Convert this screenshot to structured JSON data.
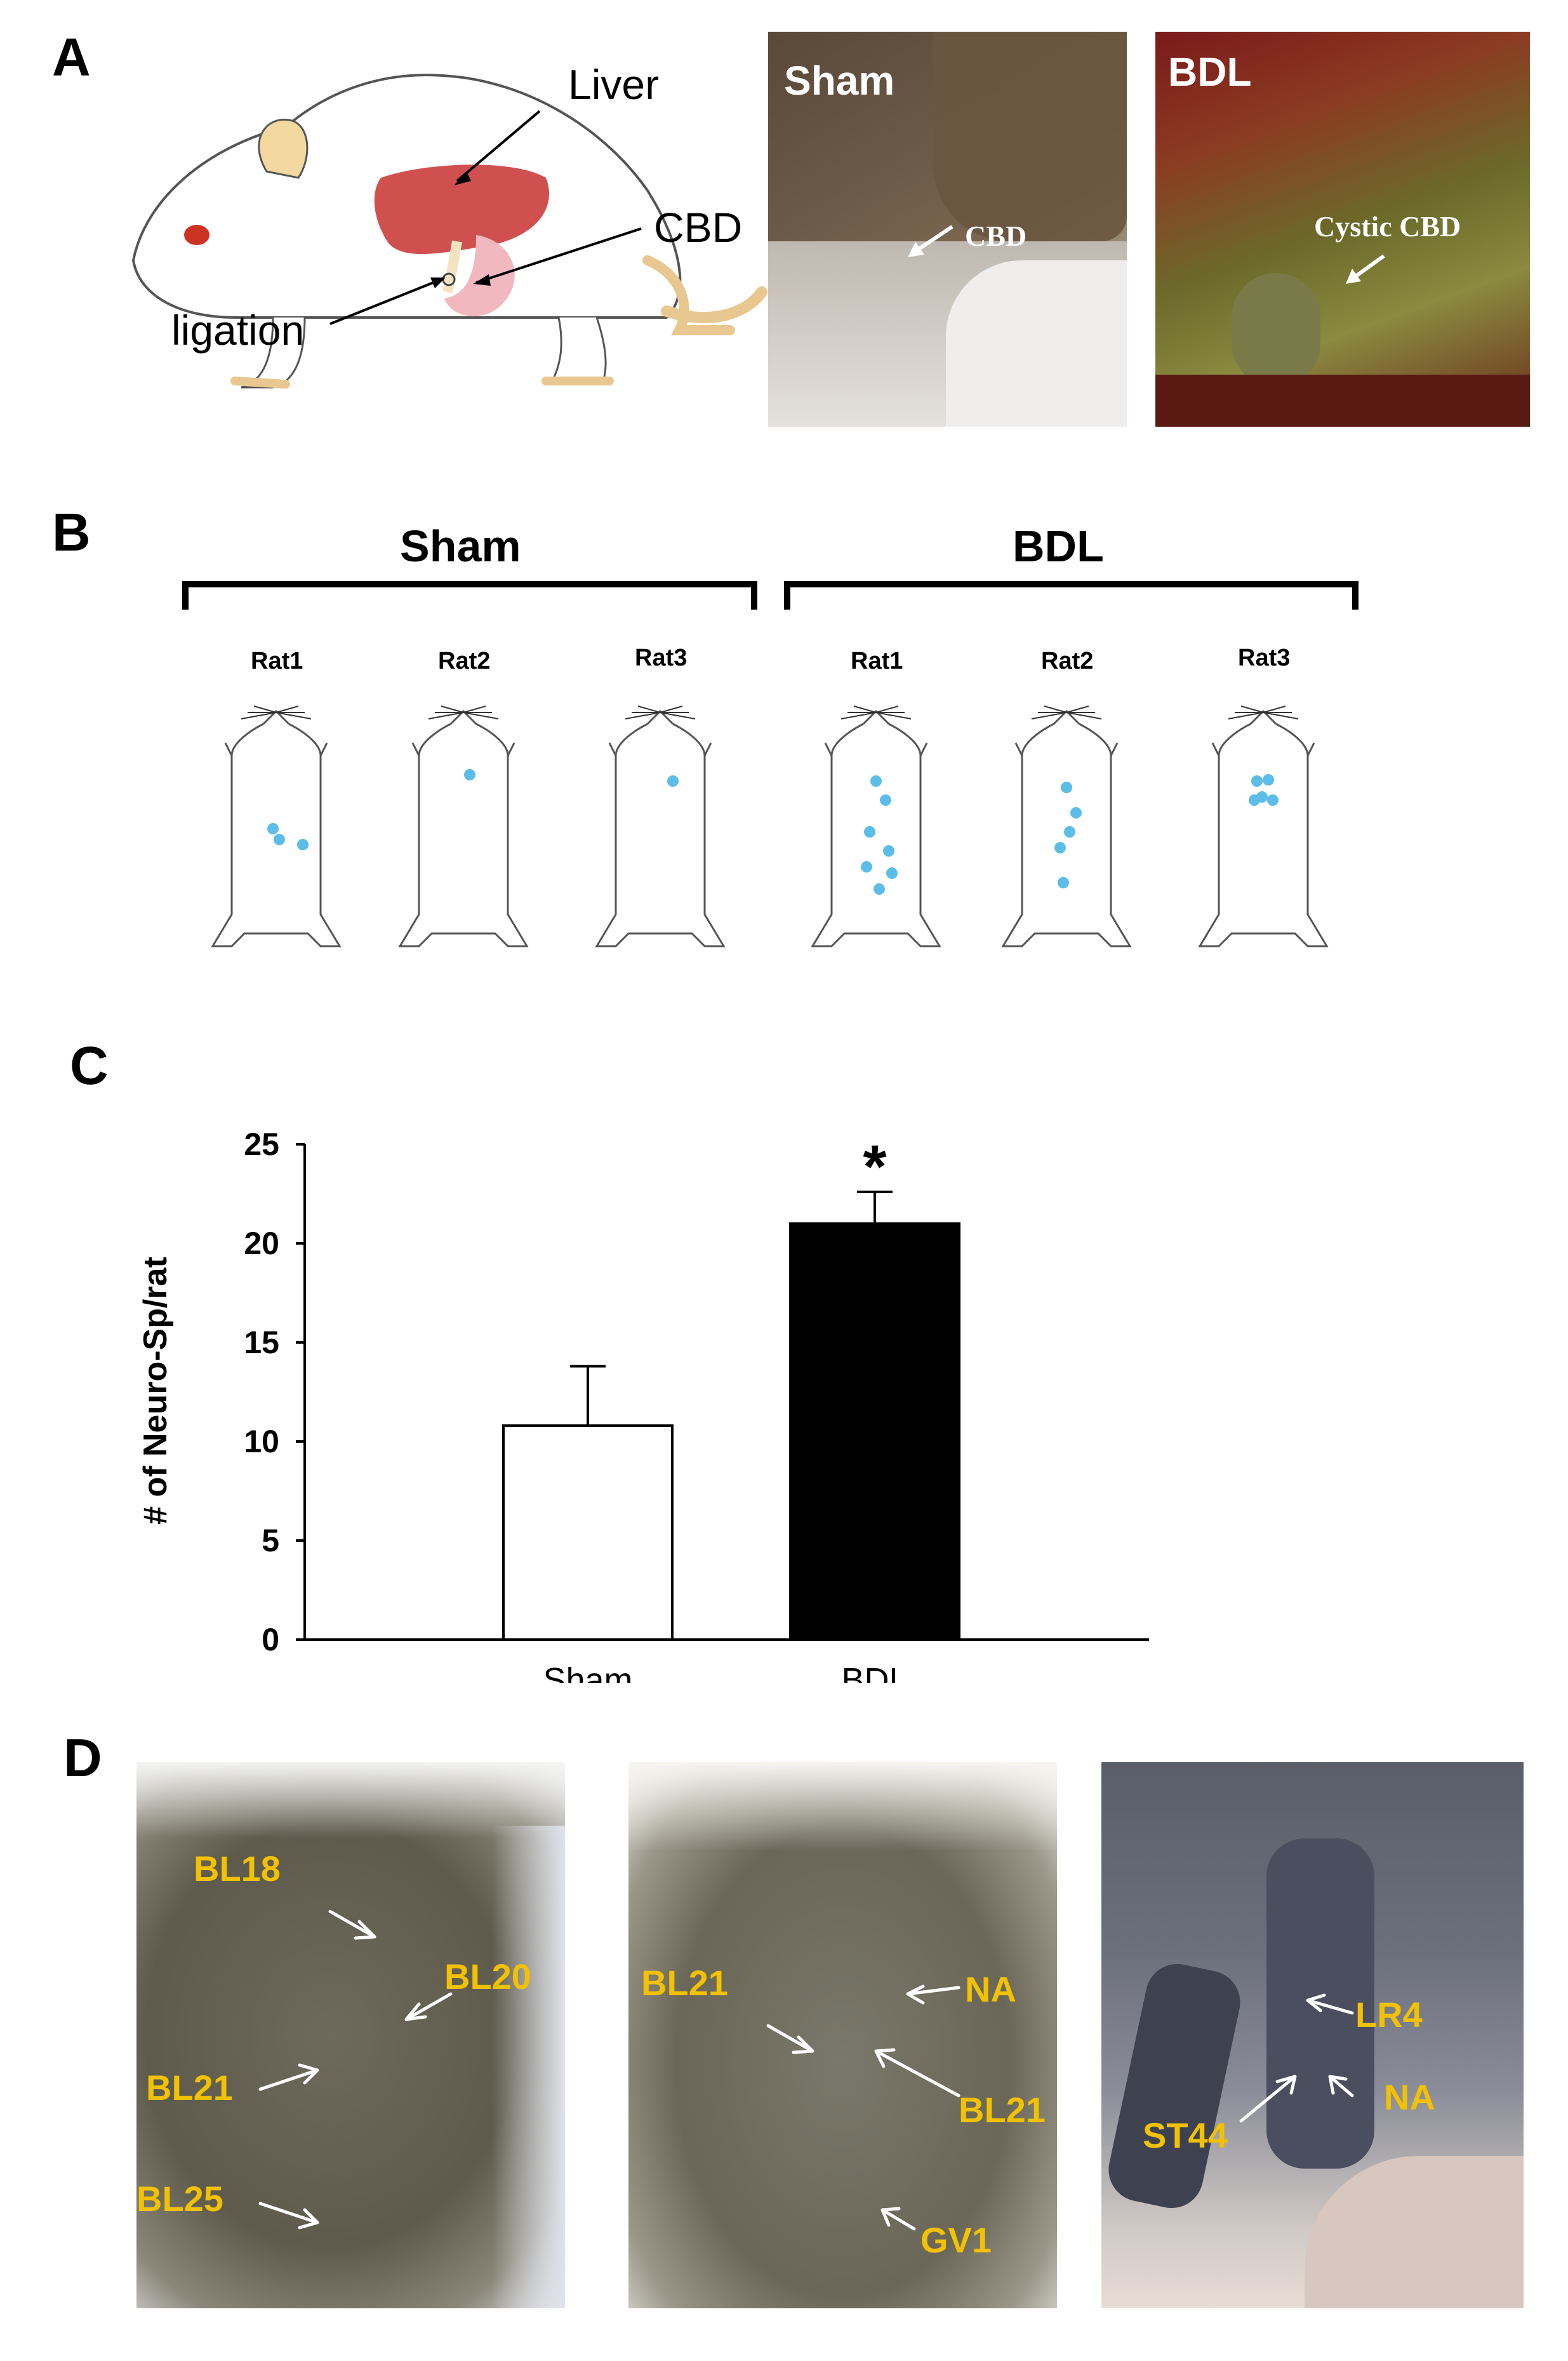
{
  "panels": {
    "a": "A",
    "b": "B",
    "c": "C",
    "d": "D"
  },
  "panel_a": {
    "diagram_labels": {
      "liver": "Liver",
      "cbd": "CBD",
      "ligation": "ligation"
    },
    "photo_sham": {
      "title": "Sham",
      "arrow_label": "CBD"
    },
    "photo_bdl": {
      "title": "BDL",
      "arrow_label": "Cystic CBD"
    }
  },
  "panel_b": {
    "groups": [
      {
        "name": "Sham",
        "rats": [
          "Rat1",
          "Rat2",
          "Rat3"
        ],
        "spot_counts": [
          3,
          1,
          1
        ]
      },
      {
        "name": "BDL",
        "rats": [
          "Rat1",
          "Rat2",
          "Rat3"
        ],
        "spot_counts": [
          7,
          5,
          5
        ]
      }
    ],
    "spot_color": "#5bbde8"
  },
  "panel_c": {
    "chart_data": {
      "type": "bar",
      "categories": [
        "Sham",
        "BDL"
      ],
      "values": [
        10.8,
        21.0
      ],
      "error": [
        3.0,
        1.6
      ],
      "bar_colors": [
        "#ffffff",
        "#000000"
      ],
      "ylabel": "# of Neuro-Sp/rat",
      "ylim": [
        0,
        25
      ],
      "yticks": [
        "0",
        "5",
        "10",
        "15",
        "20",
        "25"
      ],
      "annotation": "*",
      "grid": false
    }
  },
  "panel_d": {
    "photo1_labels": [
      "BL18",
      "BL20",
      "BL21",
      "BL25"
    ],
    "photo2_labels": [
      "BL21",
      "NA",
      "BL21",
      "GV1"
    ],
    "photo3_labels": [
      "LR4",
      "NA",
      "ST44"
    ],
    "label_color": "#f2c200"
  }
}
